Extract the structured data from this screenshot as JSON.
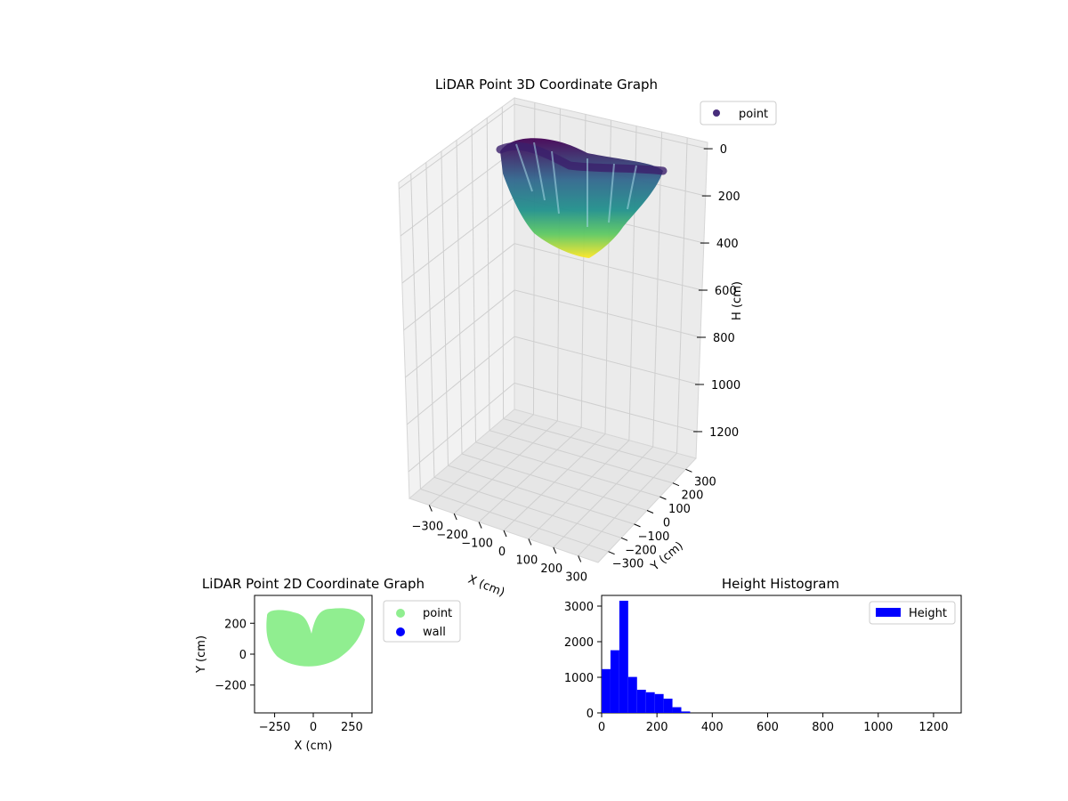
{
  "chart_data": [
    {
      "type": "scatter3d",
      "title": "LiDAR Point 3D Coordinate Graph",
      "xlabel": "X (cm)",
      "ylabel": "Y (cm)",
      "zlabel": "H (cm)",
      "x_ticks": [
        -300,
        -200,
        -100,
        0,
        100,
        200,
        300
      ],
      "y_ticks": [
        -300,
        -200,
        -100,
        0,
        100,
        200,
        300
      ],
      "z_ticks": [
        0,
        200,
        400,
        600,
        800,
        1000,
        1200
      ],
      "z_inverted": true,
      "colormap": "viridis",
      "legend": [
        "point"
      ],
      "legend_position": "top-right",
      "grid": true
    },
    {
      "type": "scatter",
      "title": "LiDAR Point 2D Coordinate Graph",
      "xlabel": "X (cm)",
      "ylabel": "Y (cm)",
      "x_ticks": [
        -250,
        0,
        250
      ],
      "y_ticks": [
        -200,
        0,
        200
      ],
      "xlim": [
        -380,
        380
      ],
      "ylim": [
        -380,
        380
      ],
      "series": [
        {
          "name": "point",
          "color": "#90ee90"
        },
        {
          "name": "wall",
          "color": "#0000ff"
        }
      ],
      "legend_position": "outside-right"
    },
    {
      "type": "bar",
      "title": "Height Histogram",
      "x_ticks": [
        0,
        200,
        400,
        600,
        800,
        1000,
        1200
      ],
      "y_ticks": [
        0,
        1000,
        2000,
        3000
      ],
      "xlim": [
        0,
        1300
      ],
      "ylim": [
        0,
        3300
      ],
      "bin_width": 32,
      "bin_starts": [
        0,
        32,
        64,
        96,
        128,
        160,
        192,
        224,
        256,
        288
      ],
      "values": [
        1230,
        1760,
        3150,
        1010,
        650,
        580,
        530,
        400,
        160,
        40
      ],
      "series": [
        {
          "name": "Height",
          "color": "#0000ff"
        }
      ],
      "legend_position": "top-right"
    }
  ]
}
